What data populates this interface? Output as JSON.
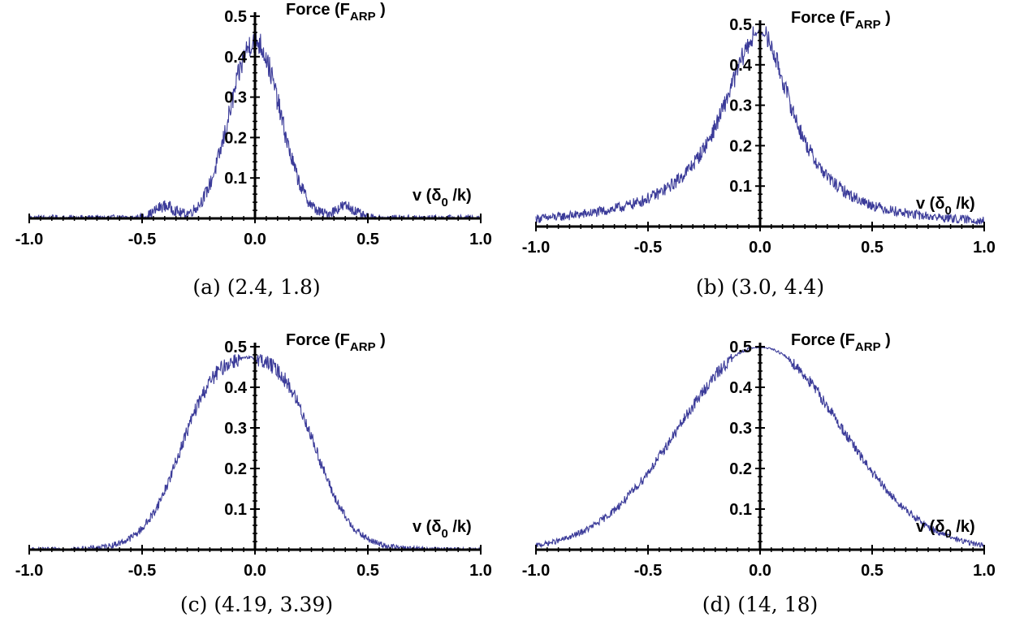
{
  "chart_data": [
    {
      "type": "line",
      "caption": "(a) (2.4, 1.8)",
      "ylabel_main": "Force (F",
      "ylabel_sub": "ARP",
      "ylabel_close": " )",
      "xlabel_main": "v (δ",
      "xlabel_sub": "0",
      "xlabel_close": " /k)",
      "xlim": [
        -1.0,
        1.0
      ],
      "ylim": [
        0,
        0.5
      ],
      "x_ticks": [
        "-1.0",
        "-0.5",
        "0.0",
        "0.5",
        "1.0"
      ],
      "y_ticks": [
        "0.1",
        "0.2",
        "0.3",
        "0.4",
        "0.5"
      ],
      "series_color": "#3b3b99",
      "profile": "peak",
      "params": {
        "peak": 0.44,
        "sigma": 0.11,
        "noise": 0.025
      },
      "sample_points": [
        {
          "x": -1.0,
          "y": 0.0
        },
        {
          "x": -0.6,
          "y": 0.005
        },
        {
          "x": -0.4,
          "y": 0.05
        },
        {
          "x": -0.2,
          "y": 0.15
        },
        {
          "x": -0.1,
          "y": 0.3
        },
        {
          "x": 0.0,
          "y": 0.44
        },
        {
          "x": 0.1,
          "y": 0.25
        },
        {
          "x": 0.2,
          "y": 0.08
        },
        {
          "x": 0.4,
          "y": 0.05
        },
        {
          "x": 0.6,
          "y": 0.005
        },
        {
          "x": 1.0,
          "y": 0.0
        }
      ]
    },
    {
      "type": "line",
      "caption": "(b) (3.0, 4.4)",
      "ylabel_main": "Force (F",
      "ylabel_sub": "ARP",
      "ylabel_close": " )",
      "xlabel_main": "v (δ",
      "xlabel_sub": "0",
      "xlabel_close": " /k)",
      "xlim": [
        -1.0,
        1.0
      ],
      "ylim": [
        0,
        0.5
      ],
      "x_ticks": [
        "-1.0",
        "-0.5",
        "0.0",
        "0.5",
        "1.0"
      ],
      "y_ticks": [
        "0.1",
        "0.2",
        "0.3",
        "0.4",
        "0.5"
      ],
      "series_color": "#3b3b99",
      "profile": "lorentz",
      "params": {
        "peak": 0.48,
        "gamma": 0.19,
        "noise": 0.02
      },
      "sample_points": [
        {
          "x": -1.0,
          "y": 0.0
        },
        {
          "x": -0.5,
          "y": 0.06
        },
        {
          "x": -0.25,
          "y": 0.2
        },
        {
          "x": -0.1,
          "y": 0.37
        },
        {
          "x": 0.0,
          "y": 0.48
        },
        {
          "x": 0.1,
          "y": 0.37
        },
        {
          "x": 0.25,
          "y": 0.17
        },
        {
          "x": 0.5,
          "y": 0.04
        },
        {
          "x": 1.0,
          "y": 0.0
        }
      ]
    },
    {
      "type": "line",
      "caption": "(c) (4.19, 3.39)",
      "ylabel_main": "Force (F",
      "ylabel_sub": "ARP",
      "ylabel_close": " )",
      "xlabel_main": "v (δ",
      "xlabel_sub": "0",
      "xlabel_close": " /k)",
      "xlim": [
        -1.0,
        1.0
      ],
      "ylim": [
        0,
        0.5
      ],
      "x_ticks": [
        "-1.0",
        "-0.5",
        "0.0",
        "0.5",
        "1.0"
      ],
      "y_ticks": [
        "0.1",
        "0.2",
        "0.3",
        "0.4",
        "0.5"
      ],
      "series_color": "#3b3b99",
      "profile": "plateau",
      "params": {
        "peak": 0.495,
        "center": -0.03,
        "halfwidth": 0.3,
        "width": 0.08,
        "noise": 0.015
      },
      "sample_points": [
        {
          "x": -1.0,
          "y": 0.0
        },
        {
          "x": -0.5,
          "y": 0.04
        },
        {
          "x": -0.35,
          "y": 0.2
        },
        {
          "x": -0.2,
          "y": 0.46
        },
        {
          "x": 0.0,
          "y": 0.49
        },
        {
          "x": 0.1,
          "y": 0.495
        },
        {
          "x": 0.2,
          "y": 0.42
        },
        {
          "x": 0.3,
          "y": 0.2
        },
        {
          "x": 0.5,
          "y": 0.03
        },
        {
          "x": 1.0,
          "y": 0.0
        }
      ]
    },
    {
      "type": "line",
      "caption": "(d) (14, 18)",
      "ylabel_main": "Force (F",
      "ylabel_sub": "ARP",
      "ylabel_close": " )",
      "xlabel_main": "v (δ",
      "xlabel_sub": "0",
      "xlabel_close": " /k)",
      "xlim": [
        -1.0,
        1.0
      ],
      "ylim": [
        0,
        0.5
      ],
      "x_ticks": [
        "-1.0",
        "-0.5",
        "0.0",
        "0.5",
        "1.0"
      ],
      "y_ticks": [
        "0.1",
        "0.2",
        "0.3",
        "0.4",
        "0.5"
      ],
      "series_color": "#3b3b99",
      "profile": "gauss",
      "params": {
        "peak": 0.5,
        "sigma": 0.36,
        "noise": 0.012
      },
      "sample_points": [
        {
          "x": -1.0,
          "y": 0.01
        },
        {
          "x": -0.5,
          "y": 0.2
        },
        {
          "x": -0.25,
          "y": 0.39
        },
        {
          "x": 0.0,
          "y": 0.5
        },
        {
          "x": 0.25,
          "y": 0.39
        },
        {
          "x": 0.5,
          "y": 0.2
        },
        {
          "x": 0.75,
          "y": 0.06
        },
        {
          "x": 1.0,
          "y": 0.01
        }
      ]
    }
  ]
}
